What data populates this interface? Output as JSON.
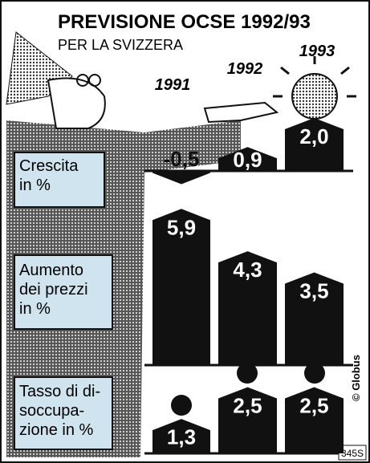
{
  "title": "PREVISIONE OCSE 1992/93",
  "subtitle": "PER LA SVIZZERA",
  "credit": "© Globus",
  "code": "345S",
  "chart_data": [
    {
      "type": "bar",
      "title": [
        "Crescita",
        "in %"
      ],
      "categories": [
        "1991",
        "1992",
        "1993"
      ],
      "values": [
        -0.5,
        0.9,
        2.0
      ],
      "value_labels": [
        "-0,5",
        "0,9",
        "2,0"
      ],
      "color": "#111111"
    },
    {
      "type": "bar",
      "title": [
        "Aumento",
        "dei prezzi",
        "in %"
      ],
      "values": [
        5.9,
        4.3,
        3.5
      ],
      "value_labels": [
        "5,9",
        "4,3",
        "3,5"
      ],
      "color": "#111111"
    },
    {
      "type": "bar",
      "title": [
        "Tasso di di-",
        "soccupa-",
        "zione in %"
      ],
      "values": [
        1.3,
        2.5,
        2.5
      ],
      "value_labels": [
        "1,3",
        "2,5",
        "2,5"
      ],
      "color": "#111111"
    }
  ]
}
